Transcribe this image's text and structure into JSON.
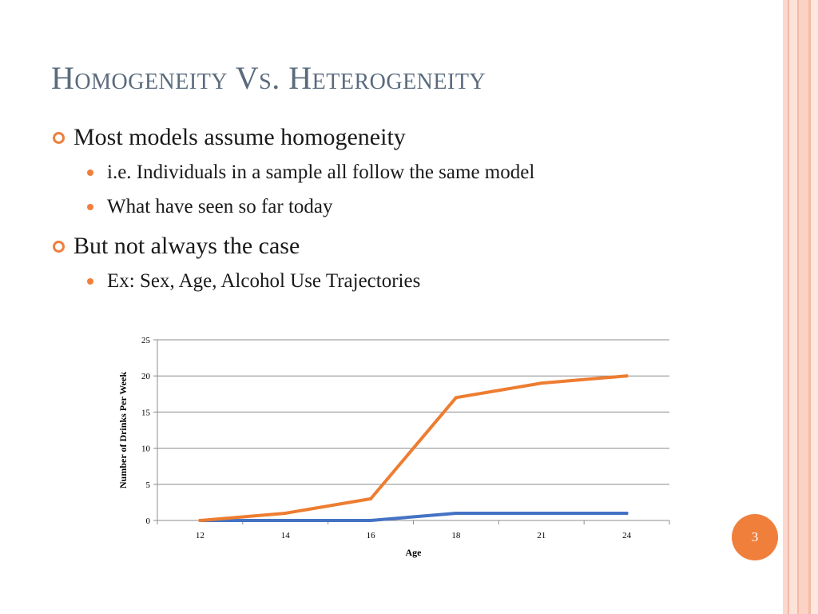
{
  "slide": {
    "title": "Homogeneity Vs. Heterogeneity",
    "bullets": [
      {
        "text": "Most models assume homogeneity",
        "sub": [
          "i.e. Individuals in a sample all follow the same model",
          "What have seen so far today"
        ]
      },
      {
        "text": "But not always the case",
        "sub": [
          "Ex: Sex, Age, Alcohol Use Trajectories"
        ]
      }
    ],
    "slide_number": "3",
    "accent_color": "#f07f3c",
    "title_color": "#5a6b7d"
  },
  "chart_data": {
    "type": "line",
    "categories": [
      "12",
      "14",
      "16",
      "18",
      "21",
      "24"
    ],
    "series": [
      {
        "values": [
          0,
          1,
          3,
          17,
          19,
          20
        ],
        "color": "#ed7d31"
      },
      {
        "values": [
          0,
          0,
          0,
          1,
          1,
          1
        ],
        "color": "#4472c4"
      }
    ],
    "xlabel": "Age",
    "ylabel": "Number of Drinks Per Week",
    "ylim": [
      0,
      25
    ],
    "yticks": [
      0,
      5,
      10,
      15,
      20,
      25
    ],
    "grid": true
  }
}
